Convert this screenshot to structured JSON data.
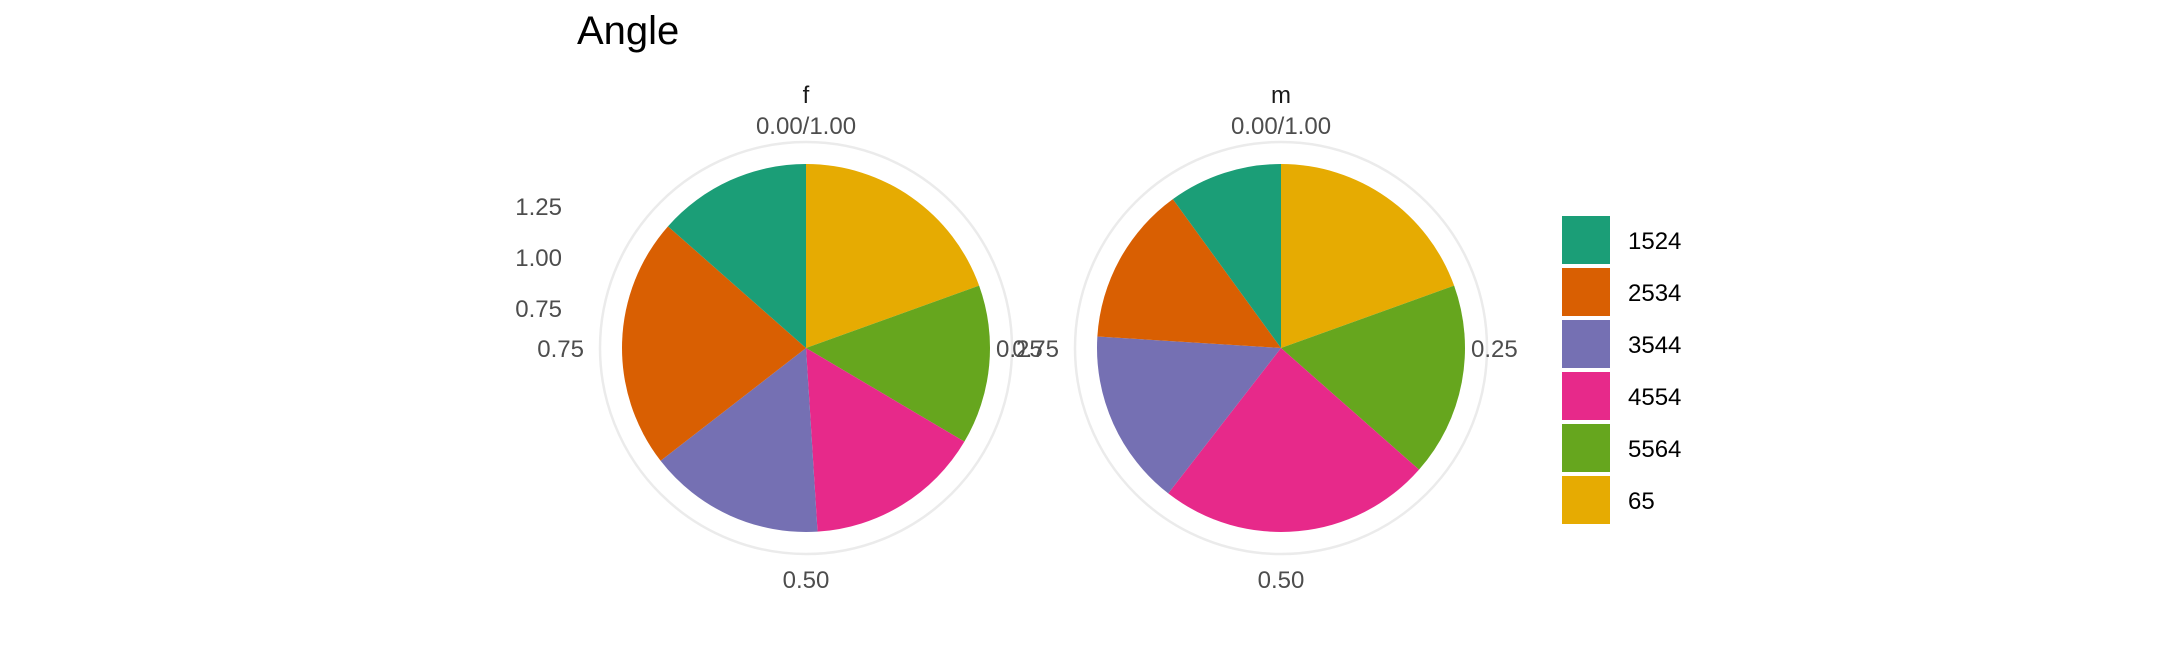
{
  "chart_data": {
    "type": "pie",
    "title": "Angle",
    "categories": [
      "1524",
      "2534",
      "3544",
      "4554",
      "5564",
      "65"
    ],
    "colors": [
      "#1B9E77",
      "#D95F02",
      "#7570B3",
      "#E7298A",
      "#66A61E",
      "#E6AB02"
    ],
    "radial_tick_labels": [
      "1.25",
      "1.00",
      "0.75"
    ],
    "angle_tick_labels": [
      "0.00/1.00",
      "0.25",
      "0.50",
      "0.75"
    ],
    "facets": [
      {
        "label": "f",
        "values": [
          0.135,
          0.22,
          0.155,
          0.155,
          0.14,
          0.195
        ]
      },
      {
        "label": "m",
        "values": [
          0.1,
          0.14,
          0.155,
          0.24,
          0.17,
          0.195
        ]
      }
    ],
    "legend": {
      "position": "right",
      "entries": [
        "1524",
        "2534",
        "3544",
        "4554",
        "5564",
        "65"
      ]
    },
    "grid": true
  }
}
